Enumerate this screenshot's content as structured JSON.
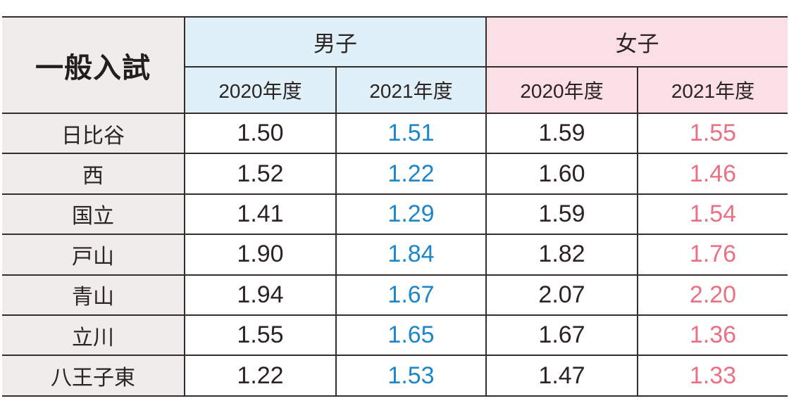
{
  "table": {
    "corner_label": "一般入試",
    "groups": [
      {
        "label": "男子",
        "columns": [
          "2020年度",
          "2021年度"
        ]
      },
      {
        "label": "女子",
        "columns": [
          "2020年度",
          "2021年度"
        ]
      }
    ],
    "rows": [
      {
        "school": "日比谷",
        "values": [
          "1.50",
          "1.51",
          "1.59",
          "1.55"
        ]
      },
      {
        "school": "西",
        "values": [
          "1.52",
          "1.22",
          "1.60",
          "1.46"
        ]
      },
      {
        "school": "国立",
        "values": [
          "1.41",
          "1.29",
          "1.59",
          "1.54"
        ]
      },
      {
        "school": "戸山",
        "values": [
          "1.90",
          "1.84",
          "1.82",
          "1.76"
        ]
      },
      {
        "school": "青山",
        "values": [
          "1.94",
          "1.67",
          "2.07",
          "2.20"
        ]
      },
      {
        "school": "立川",
        "values": [
          "1.55",
          "1.65",
          "1.67",
          "1.36"
        ]
      },
      {
        "school": "八王子東",
        "values": [
          "1.22",
          "1.53",
          "1.47",
          "1.33"
        ]
      }
    ],
    "colors": {
      "boys_header_bg": "#dff0f8",
      "girls_header_bg": "#fadfe4",
      "row_label_bg": "#eeedec",
      "boys_2021_text": "#1d87c9",
      "girls_2021_text": "#e97183",
      "dark_text": "#2b2423",
      "border": "#332d2c"
    }
  },
  "chart_data": {
    "type": "table",
    "title": "一般入試",
    "column_groups": [
      {
        "name": "男子",
        "columns": [
          "2020年度",
          "2021年度"
        ]
      },
      {
        "name": "女子",
        "columns": [
          "2020年度",
          "2021年度"
        ]
      }
    ],
    "row_label_header": "一般入試",
    "rows": [
      {
        "school": "日比谷",
        "boys_2020": 1.5,
        "boys_2021": 1.51,
        "girls_2020": 1.59,
        "girls_2021": 1.55
      },
      {
        "school": "西",
        "boys_2020": 1.52,
        "boys_2021": 1.22,
        "girls_2020": 1.6,
        "girls_2021": 1.46
      },
      {
        "school": "国立",
        "boys_2020": 1.41,
        "boys_2021": 1.29,
        "girls_2020": 1.59,
        "girls_2021": 1.54
      },
      {
        "school": "戸山",
        "boys_2020": 1.9,
        "boys_2021": 1.84,
        "girls_2020": 1.82,
        "girls_2021": 1.76
      },
      {
        "school": "青山",
        "boys_2020": 1.94,
        "boys_2021": 1.67,
        "girls_2020": 2.07,
        "girls_2021": 2.2
      },
      {
        "school": "立川",
        "boys_2020": 1.55,
        "boys_2021": 1.65,
        "girls_2020": 1.67,
        "girls_2021": 1.36
      },
      {
        "school": "八王子東",
        "boys_2020": 1.22,
        "boys_2021": 1.53,
        "girls_2020": 1.47,
        "girls_2021": 1.33
      }
    ]
  }
}
